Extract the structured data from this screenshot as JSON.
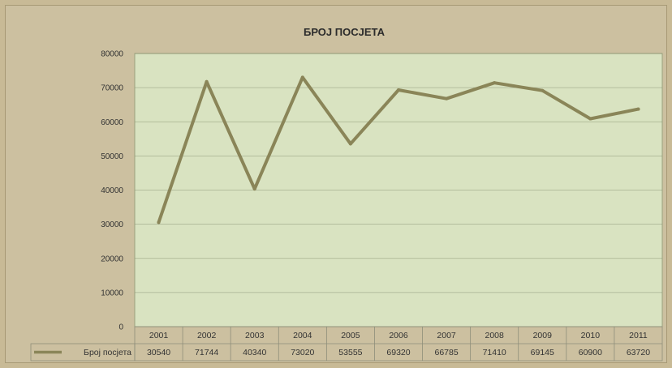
{
  "chart_data": {
    "type": "line",
    "title": "БРОЈ ПОСЈЕТА",
    "categories": [
      "2001",
      "2002",
      "2003",
      "2004",
      "2005",
      "2006",
      "2007",
      "2008",
      "2009",
      "2010",
      "2011"
    ],
    "series": [
      {
        "name": "Број посјета",
        "values": [
          30540,
          71744,
          40340,
          73020,
          53555,
          69320,
          66785,
          71410,
          69145,
          60900,
          63720
        ]
      }
    ],
    "ylim": [
      0,
      80000
    ],
    "yticks": [
      "0",
      "10000",
      "20000",
      "30000",
      "40000",
      "50000",
      "60000",
      "70000",
      "80000"
    ],
    "grid": true,
    "legend": "data-table-left",
    "colors": {
      "line": "#8a8558",
      "plot_bg": "#d9e3c1",
      "chart_bg": "#ccc0a0",
      "grid": "#7f8a6a"
    }
  }
}
